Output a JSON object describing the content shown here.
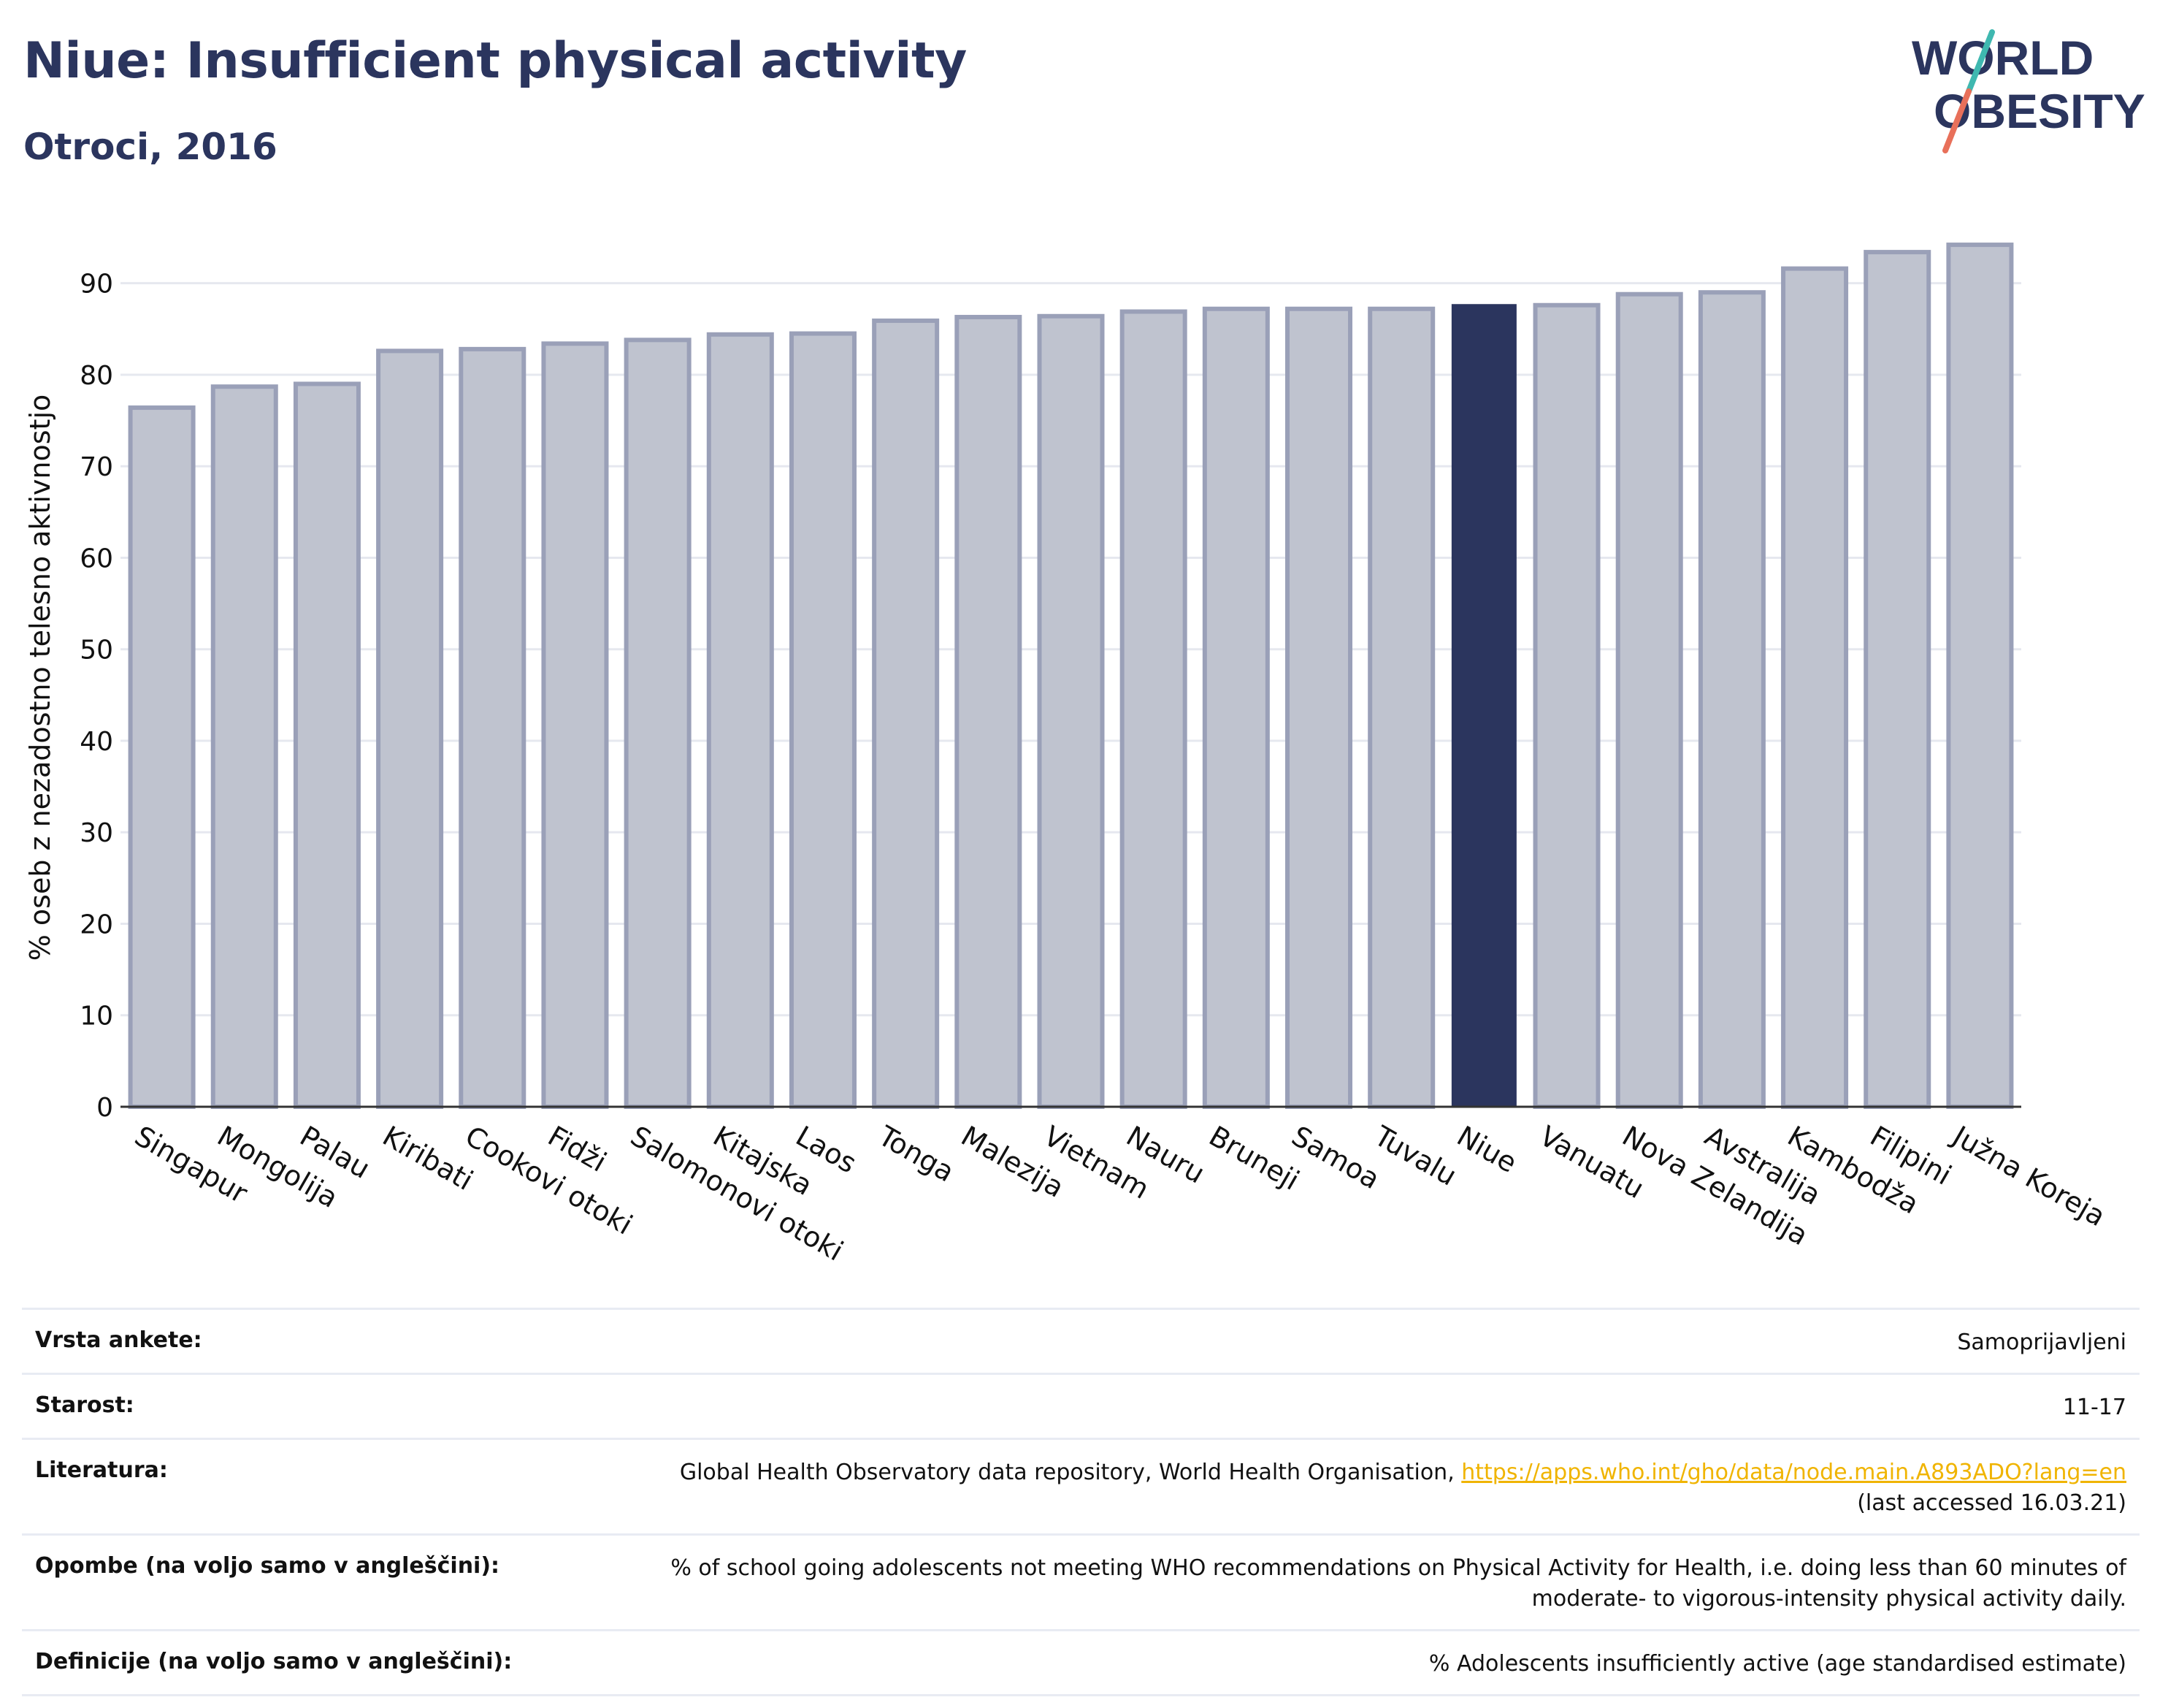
{
  "header": {
    "title": "Niue: Insufficient physical activity",
    "subtitle": "Otroci, 2016"
  },
  "logo": {
    "line1": "WORLD",
    "line2": "OBESITY"
  },
  "chart_data": {
    "type": "bar",
    "ylabel": "% oseb z nezadostno telesno aktivnostjo",
    "ylim": [
      0,
      97
    ],
    "yticks": [
      0,
      10,
      20,
      30,
      40,
      50,
      60,
      70,
      80,
      90
    ],
    "grid": true,
    "highlight": "Niue",
    "colors": {
      "bar": "#bfc3cf",
      "bar_border": "#9aa0b8",
      "highlight": "#2b355e"
    },
    "categories": [
      "Singapur",
      "Mongolija",
      "Palau",
      "Kiribati",
      "Cookovi otoki",
      "Fidži",
      "Salomonovi otoki",
      "Kitajska",
      "Laos",
      "Tonga",
      "Malezija",
      "Vietnam",
      "Nauru",
      "Bruneji",
      "Samoa",
      "Tuvalu",
      "Niue",
      "Vanuatu",
      "Nova Zelandija",
      "Avstralija",
      "Kambodža",
      "Filipini",
      "Južna Koreja"
    ],
    "values": [
      76.4,
      78.7,
      79.0,
      82.6,
      82.8,
      83.4,
      83.8,
      84.4,
      84.5,
      85.9,
      86.3,
      86.4,
      86.9,
      87.2,
      87.2,
      87.2,
      87.6,
      87.6,
      88.8,
      89.0,
      91.6,
      93.4,
      94.2
    ]
  },
  "meta": {
    "survey_type": {
      "label": "Vrsta ankete:",
      "value": "Samoprijavljeni"
    },
    "age": {
      "label": "Starost:",
      "value": "11-17"
    },
    "literature": {
      "label": "Literatura:",
      "text": "Global Health Observatory data repository, World Health Organisation, ",
      "link": "https://apps.who.int/gho/data/node.main.A893ADO?lang=en",
      "accessed": "(last accessed 16.03.21)"
    },
    "notes": {
      "label": "Opombe (na voljo samo v angleščini):",
      "line1": "% of school going adolescents not meeting WHO recommendations on Physical Activity for Health, i.e. doing less than 60 minutes of",
      "line2": "moderate- to vigorous-intensity physical activity daily."
    },
    "definitions": {
      "label": "Definicije (na voljo samo v angleščini):",
      "value": "% Adolescents insufficiently active (age standardised estimate)"
    }
  }
}
